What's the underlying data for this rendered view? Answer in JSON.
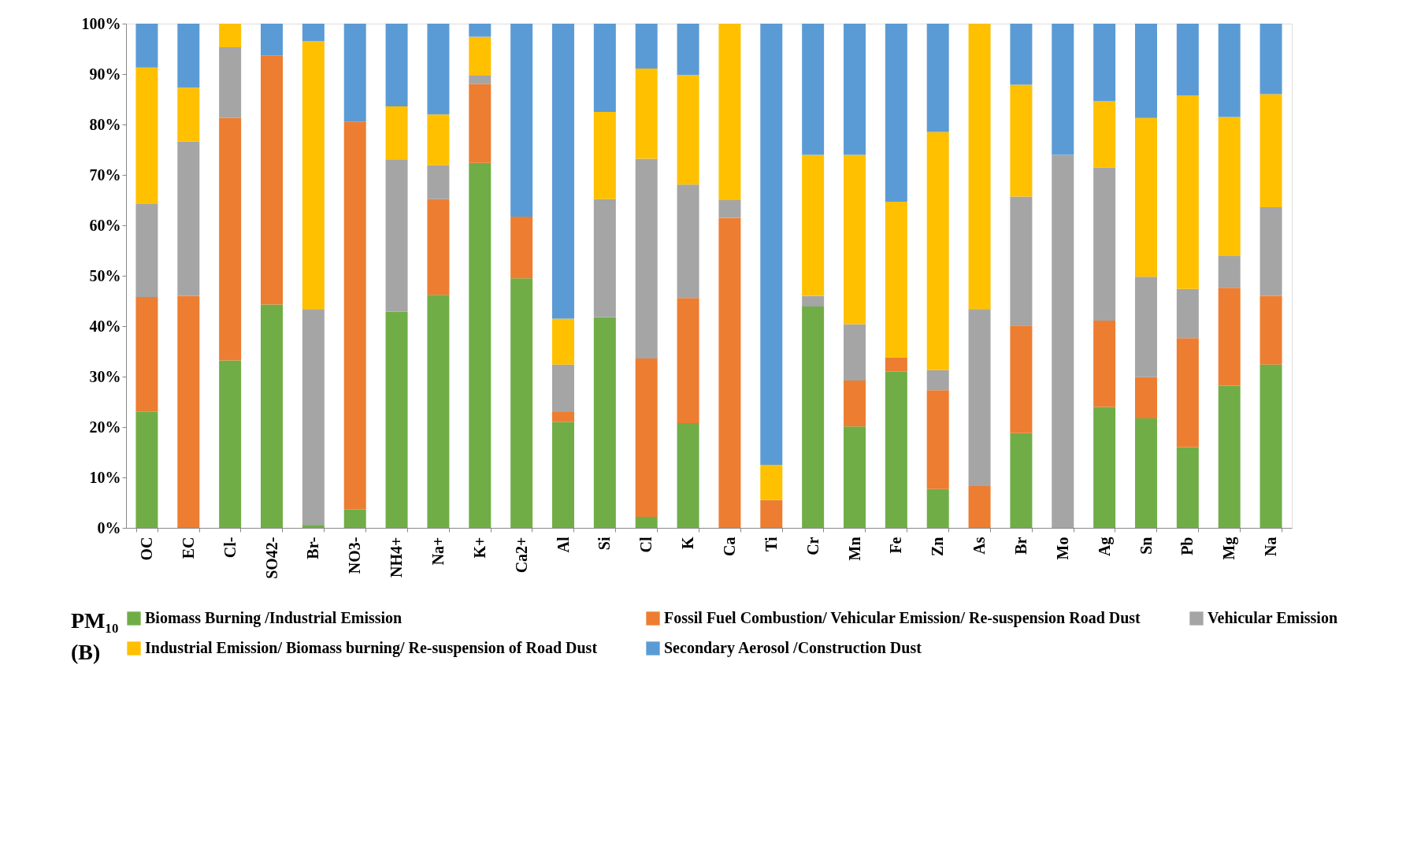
{
  "chart_data": {
    "type": "bar",
    "stacked": true,
    "legend": "bottom",
    "grid": false,
    "categories": [
      "OC",
      "EC",
      "Cl-",
      "SO42-",
      "Br-",
      "NO3-",
      "NH4+",
      "Na+",
      "K+",
      "Ca2+",
      "Al",
      "Si",
      "Cl",
      "K",
      "Ca",
      "Ti",
      "Cr",
      "Mn",
      "Fe",
      "Zn",
      "As",
      "Br",
      "Mo",
      "Ag",
      "Sn",
      "Pb",
      "Mg",
      "Na"
    ],
    "ylim": [
      0,
      100
    ],
    "yticks": [
      {
        "value": 0,
        "label": "0%"
      },
      {
        "value": 10,
        "label": "10%"
      },
      {
        "value": 20,
        "label": "20%"
      },
      {
        "value": 30,
        "label": "30%"
      },
      {
        "value": 40,
        "label": "40%"
      },
      {
        "value": 50,
        "label": "50%"
      },
      {
        "value": 60,
        "label": "60%"
      },
      {
        "value": 70,
        "label": "70%"
      },
      {
        "value": 80,
        "label": "80%"
      },
      {
        "value": 90,
        "label": "90%"
      },
      {
        "value": 100,
        "label": "100%"
      }
    ],
    "series": [
      {
        "name": "Biomass Burning /Industrial Emission",
        "color": "#70ad47",
        "values": [
          23,
          0,
          33.2,
          44.3,
          0.6,
          3.7,
          42.9,
          46.2,
          72.4,
          49.5,
          21,
          41.8,
          2.2,
          20.8,
          0,
          0,
          43.9,
          20.1,
          31,
          7.7,
          0,
          18.8,
          0,
          24,
          21.7,
          16,
          28.2,
          32.4
        ]
      },
      {
        "name": "Fossil Fuel Combustion/ Vehicular Emission/ Re-suspension Road Dust",
        "color": "#ed7d31",
        "values": [
          22.8,
          46,
          48.1,
          49.4,
          0,
          76.9,
          0,
          19,
          15.6,
          12.2,
          2.1,
          0,
          31.4,
          24.8,
          61.5,
          5.5,
          0,
          9.1,
          2.8,
          19.6,
          8.3,
          21.3,
          0,
          17.1,
          8.2,
          21.6,
          19.4,
          13.6
        ]
      },
      {
        "name": "Vehicular Emission",
        "color": "#a5a5a5",
        "values": [
          18.4,
          30.6,
          14,
          0,
          42.8,
          0,
          30.2,
          6.7,
          1.7,
          0,
          9.3,
          23.4,
          39.6,
          22.5,
          3.5,
          0,
          2.1,
          11.2,
          0,
          4,
          35.1,
          25.6,
          74,
          30.4,
          19.9,
          9.8,
          6.3,
          17.6
        ]
      },
      {
        "name": "Industrial Emission/ Biomass burning/ Re-suspension of Road Dust",
        "color": "#ffc000",
        "values": [
          27.1,
          10.7,
          4.7,
          0,
          53.1,
          0,
          10.5,
          10.1,
          7.7,
          0,
          9.1,
          17.3,
          17.9,
          21.7,
          35,
          7,
          28,
          33.6,
          30.9,
          47.2,
          56.6,
          22.2,
          0,
          13.1,
          31.5,
          38.4,
          27.6,
          22.4
        ]
      },
      {
        "name": "Secondary Aerosol /Construction Dust",
        "color": "#5b9bd5",
        "values": [
          8.7,
          12.7,
          0,
          6.3,
          3.5,
          19.4,
          16.4,
          18,
          2.6,
          38.3,
          58.5,
          17.5,
          8.9,
          10.2,
          0,
          87.5,
          26,
          26,
          35.3,
          21.5,
          0,
          12.1,
          26,
          15.4,
          18.7,
          14.2,
          18.5,
          14
        ]
      }
    ],
    "annotations": [
      "PM₁₀",
      "(B)"
    ]
  }
}
